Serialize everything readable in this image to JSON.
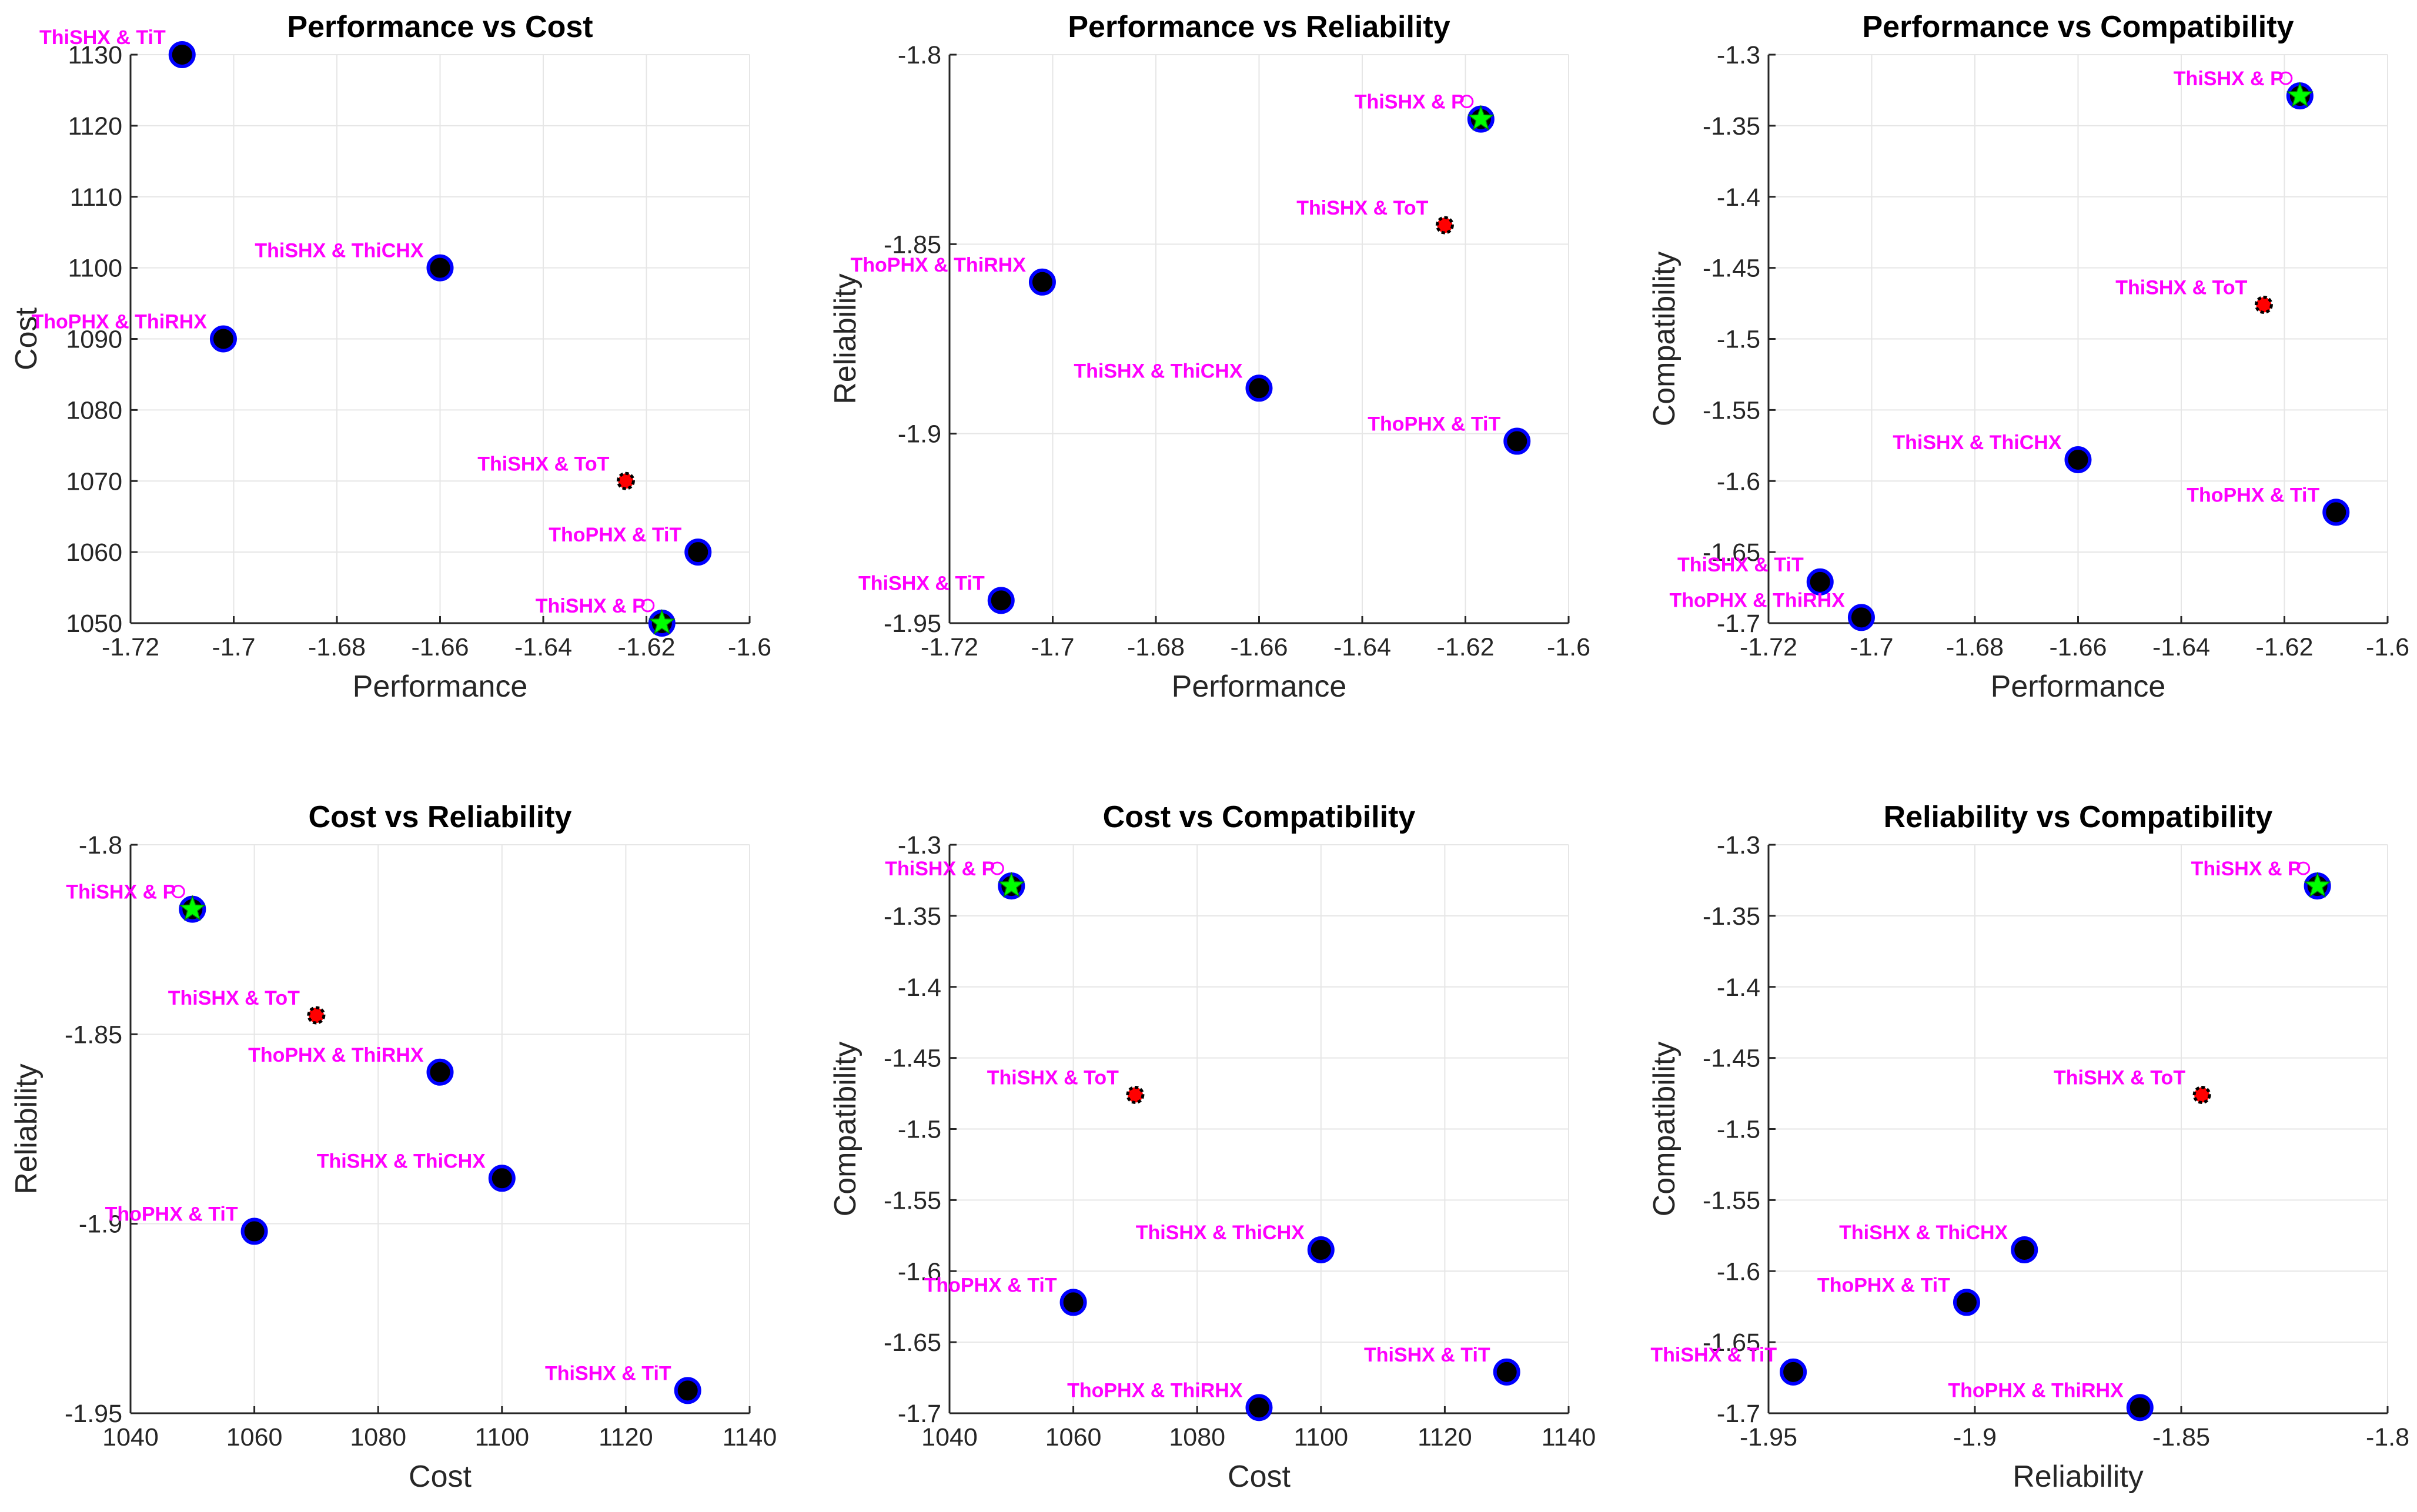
{
  "figure_title": "",
  "colors": {
    "label": "#ff00ff",
    "marker_edge": "#0000ff",
    "marker_fill": "#000000",
    "selected_star": "#00ff00",
    "red_marker": "#ff0000",
    "grid": "#e6e6e6",
    "axis": "#262626"
  },
  "chart_data": [
    {
      "type": "scatter",
      "title": "Performance vs Cost",
      "xlabel": "Performance",
      "ylabel": "Cost",
      "xlim": [
        -1.72,
        -1.6
      ],
      "ylim": [
        1050,
        1130
      ],
      "xticks": [
        -1.72,
        -1.7,
        -1.68,
        -1.66,
        -1.64,
        -1.62,
        -1.6
      ],
      "yticks": [
        1050,
        1060,
        1070,
        1080,
        1090,
        1100,
        1110,
        1120,
        1130
      ],
      "points": [
        {
          "label": "ThiSHX & TiT",
          "x": -1.71,
          "y": 1130,
          "marker": "circle"
        },
        {
          "label": "ThiSHX & ThiCHX",
          "x": -1.66,
          "y": 1100,
          "marker": "circle"
        },
        {
          "label": "ThoPHX & ThiRHX",
          "x": -1.702,
          "y": 1090,
          "marker": "circle"
        },
        {
          "label": "ThiSHX & ToT",
          "x": -1.624,
          "y": 1070,
          "marker": "red"
        },
        {
          "label": "ThoPHX & TiT",
          "x": -1.61,
          "y": 1060,
          "marker": "circle"
        },
        {
          "label": "ThiSHX & P",
          "x": -1.617,
          "y": 1050,
          "marker": "star"
        }
      ]
    },
    {
      "type": "scatter",
      "title": "Performance vs Reliability",
      "xlabel": "Performance",
      "ylabel": "Reliability",
      "xlim": [
        -1.72,
        -1.6
      ],
      "ylim": [
        -1.95,
        -1.8
      ],
      "xticks": [
        -1.72,
        -1.7,
        -1.68,
        -1.66,
        -1.64,
        -1.62,
        -1.6
      ],
      "yticks": [
        -1.95,
        -1.9,
        -1.85,
        -1.8
      ],
      "points": [
        {
          "label": "ThiSHX & P",
          "x": -1.617,
          "y": -1.817,
          "marker": "star"
        },
        {
          "label": "ThiSHX & ToT",
          "x": -1.624,
          "y": -1.845,
          "marker": "red"
        },
        {
          "label": "ThoPHX & ThiRHX",
          "x": -1.702,
          "y": -1.86,
          "marker": "circle"
        },
        {
          "label": "ThiSHX & ThiCHX",
          "x": -1.66,
          "y": -1.888,
          "marker": "circle"
        },
        {
          "label": "ThoPHX & TiT",
          "x": -1.61,
          "y": -1.902,
          "marker": "circle"
        },
        {
          "label": "ThiSHX & TiT",
          "x": -1.71,
          "y": -1.944,
          "marker": "circle"
        }
      ]
    },
    {
      "type": "scatter",
      "title": "Performance vs Compatibility",
      "xlabel": "Performance",
      "ylabel": "Compatibility",
      "xlim": [
        -1.72,
        -1.6
      ],
      "ylim": [
        -1.7,
        -1.3
      ],
      "xticks": [
        -1.72,
        -1.7,
        -1.68,
        -1.66,
        -1.64,
        -1.62,
        -1.6
      ],
      "yticks": [
        -1.7,
        -1.65,
        -1.6,
        -1.55,
        -1.5,
        -1.45,
        -1.4,
        -1.35,
        -1.3
      ],
      "points": [
        {
          "label": "ThiSHX & P",
          "x": -1.617,
          "y": -1.329,
          "marker": "star"
        },
        {
          "label": "ThiSHX & ToT",
          "x": -1.624,
          "y": -1.476,
          "marker": "red"
        },
        {
          "label": "ThiSHX & ThiCHX",
          "x": -1.66,
          "y": -1.585,
          "marker": "circle"
        },
        {
          "label": "ThoPHX & TiT",
          "x": -1.61,
          "y": -1.622,
          "marker": "circle"
        },
        {
          "label": "ThiSHX & TiT",
          "x": -1.71,
          "y": -1.671,
          "marker": "circle"
        },
        {
          "label": "ThoPHX & ThiRHX",
          "x": -1.702,
          "y": -1.696,
          "marker": "circle"
        }
      ]
    },
    {
      "type": "scatter",
      "title": "Cost vs Reliability",
      "xlabel": "Cost",
      "ylabel": "Reliability",
      "xlim": [
        1040,
        1140
      ],
      "ylim": [
        -1.95,
        -1.8
      ],
      "xticks": [
        1040,
        1060,
        1080,
        1100,
        1120,
        1140
      ],
      "yticks": [
        -1.95,
        -1.9,
        -1.85,
        -1.8
      ],
      "points": [
        {
          "label": "ThiSHX & P",
          "x": 1050,
          "y": -1.817,
          "marker": "star"
        },
        {
          "label": "ThiSHX & ToT",
          "x": 1070,
          "y": -1.845,
          "marker": "red"
        },
        {
          "label": "ThoPHX & ThiRHX",
          "x": 1090,
          "y": -1.86,
          "marker": "circle"
        },
        {
          "label": "ThiSHX & ThiCHX",
          "x": 1100,
          "y": -1.888,
          "marker": "circle"
        },
        {
          "label": "ThoPHX & TiT",
          "x": 1060,
          "y": -1.902,
          "marker": "circle"
        },
        {
          "label": "ThiSHX & TiT",
          "x": 1130,
          "y": -1.944,
          "marker": "circle"
        }
      ]
    },
    {
      "type": "scatter",
      "title": "Cost vs Compatibility",
      "xlabel": "Cost",
      "ylabel": "Compatibility",
      "xlim": [
        1040,
        1140
      ],
      "ylim": [
        -1.7,
        -1.3
      ],
      "xticks": [
        1040,
        1060,
        1080,
        1100,
        1120,
        1140
      ],
      "yticks": [
        -1.7,
        -1.65,
        -1.6,
        -1.55,
        -1.5,
        -1.45,
        -1.4,
        -1.35,
        -1.3
      ],
      "points": [
        {
          "label": "ThiSHX & P",
          "x": 1050,
          "y": -1.329,
          "marker": "star"
        },
        {
          "label": "ThiSHX & ToT",
          "x": 1070,
          "y": -1.476,
          "marker": "red"
        },
        {
          "label": "ThiSHX & ThiCHX",
          "x": 1100,
          "y": -1.585,
          "marker": "circle"
        },
        {
          "label": "ThoPHX & TiT",
          "x": 1060,
          "y": -1.622,
          "marker": "circle"
        },
        {
          "label": "ThiSHX & TiT",
          "x": 1130,
          "y": -1.671,
          "marker": "circle"
        },
        {
          "label": "ThoPHX & ThiRHX",
          "x": 1090,
          "y": -1.696,
          "marker": "circle"
        }
      ]
    },
    {
      "type": "scatter",
      "title": "Reliability vs Compatibility",
      "xlabel": "Reliability",
      "ylabel": "Compatibility",
      "xlim": [
        -1.95,
        -1.8
      ],
      "ylim": [
        -1.7,
        -1.3
      ],
      "xticks": [
        -1.95,
        -1.9,
        -1.85,
        -1.8
      ],
      "yticks": [
        -1.7,
        -1.65,
        -1.6,
        -1.55,
        -1.5,
        -1.45,
        -1.4,
        -1.35,
        -1.3
      ],
      "points": [
        {
          "label": "ThiSHX & P",
          "x": -1.817,
          "y": -1.329,
          "marker": "star"
        },
        {
          "label": "ThiSHX & ToT",
          "x": -1.845,
          "y": -1.476,
          "marker": "red"
        },
        {
          "label": "ThiSHX & ThiCHX",
          "x": -1.888,
          "y": -1.585,
          "marker": "circle"
        },
        {
          "label": "ThoPHX & TiT",
          "x": -1.902,
          "y": -1.622,
          "marker": "circle"
        },
        {
          "label": "ThiSHX & TiT",
          "x": -1.944,
          "y": -1.671,
          "marker": "circle"
        },
        {
          "label": "ThoPHX & ThiRHX",
          "x": -1.86,
          "y": -1.696,
          "marker": "circle"
        }
      ]
    }
  ]
}
